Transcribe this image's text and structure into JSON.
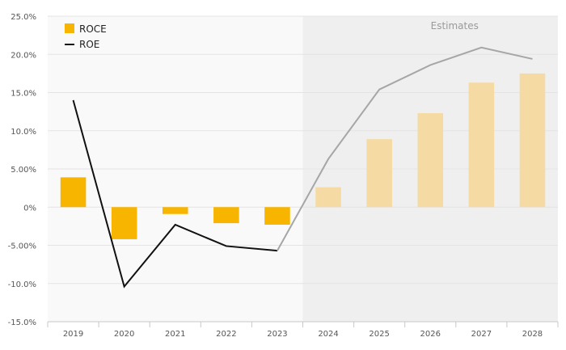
{
  "chart_data": {
    "type": "bar",
    "categories": [
      "2019",
      "2020",
      "2021",
      "2022",
      "2023",
      "2024",
      "2025",
      "2026",
      "2027",
      "2028"
    ],
    "series": [
      {
        "name": "ROCE",
        "type": "bar",
        "color": "#f7b500",
        "values": [
          3.9,
          -4.2,
          -0.9,
          -2.1,
          -2.3,
          2.6,
          8.9,
          12.3,
          16.3,
          17.5
        ]
      },
      {
        "name": "ROE",
        "type": "line",
        "color": "#111111",
        "values": [
          14.0,
          -10.4,
          -2.3,
          -5.1,
          -5.7,
          6.3,
          15.4,
          18.6,
          20.9,
          19.4
        ]
      }
    ],
    "ylim": [
      -15,
      25
    ],
    "yticks": [
      -15,
      -10,
      -5,
      0,
      5,
      10,
      15,
      20,
      25
    ],
    "ytick_labels": [
      "-15.0%",
      "-10.0%",
      "-5.00%",
      "0%",
      "5.00%",
      "10.0%",
      "15.0%",
      "20.0%",
      "25.0%"
    ],
    "estimates_label": "Estimates",
    "estimates_start_category": "2024",
    "estimate_bar_color": "#f5dba3",
    "estimate_line_color": "#a6a6a6",
    "shade_color": "#efefef",
    "legend_position": "top-left",
    "grid": true
  }
}
